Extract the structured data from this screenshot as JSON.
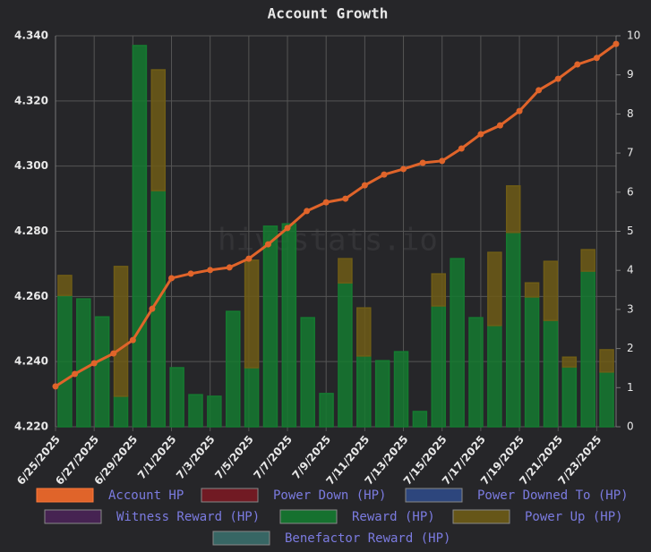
{
  "chart_data": {
    "type": "bar",
    "title": "Account Growth",
    "watermark": "hivestats.io",
    "categories": [
      "6/25/2025",
      null,
      "6/27/2025",
      null,
      "6/29/2025",
      null,
      "7/1/2025",
      null,
      "7/3/2025",
      null,
      "7/5/2025",
      null,
      "7/7/2025",
      null,
      "7/9/2025",
      null,
      "7/11/2025",
      null,
      "7/13/2025",
      null,
      "7/15/2025",
      null,
      "7/17/2025",
      null,
      "7/19/2025",
      null,
      "7/21/2025",
      null,
      "7/23/2025",
      null
    ],
    "series": [
      {
        "name": "Account HP",
        "type": "line",
        "axis": "y",
        "color": "#e0642a",
        "values": [
          4.2324,
          4.2362,
          4.2395,
          4.2425,
          4.2466,
          4.2562,
          4.2656,
          4.267,
          4.2681,
          4.2689,
          4.2716,
          4.276,
          4.281,
          4.2862,
          4.2889,
          4.29,
          4.2941,
          4.2974,
          4.2991,
          4.301,
          4.3016,
          4.3054,
          4.3098,
          4.3125,
          4.3169,
          4.3233,
          4.3268,
          4.3312,
          4.3332,
          4.3375
        ]
      },
      {
        "name": "Power Down (HP)",
        "axis": "y2",
        "color": "#7a1a22",
        "values": [
          null,
          null,
          null,
          null,
          null,
          null,
          null,
          null,
          null,
          null,
          null,
          null,
          null,
          null,
          null,
          null,
          null,
          null,
          null,
          null,
          null,
          null,
          null,
          null,
          null,
          null,
          null,
          null,
          null,
          null
        ]
      },
      {
        "name": "Power Downed To (HP)",
        "axis": "y2",
        "color": "#2f4a86",
        "values": [
          null,
          null,
          null,
          null,
          null,
          null,
          null,
          null,
          null,
          null,
          null,
          null,
          null,
          null,
          null,
          null,
          null,
          null,
          null,
          null,
          null,
          null,
          null,
          null,
          null,
          null,
          null,
          null,
          null,
          null
        ]
      },
      {
        "name": "Witness Reward (HP)",
        "axis": "y2",
        "color": "#4a2456",
        "values": [
          null,
          null,
          null,
          null,
          null,
          null,
          null,
          null,
          null,
          null,
          null,
          null,
          null,
          null,
          null,
          null,
          null,
          null,
          null,
          null,
          null,
          null,
          null,
          null,
          null,
          null,
          null,
          null,
          null,
          null
        ]
      },
      {
        "name": "Reward (HP)",
        "axis": "y2",
        "color": "#157a30",
        "values": [
          3.36,
          3.27,
          2.81,
          0.78,
          9.75,
          6.04,
          1.51,
          0.82,
          0.78,
          2.95,
          1.51,
          5.13,
          5.19,
          2.79,
          0.85,
          3.68,
          1.81,
          1.69,
          1.92,
          0.39,
          3.09,
          4.3,
          2.79,
          2.59,
          4.97,
          3.32,
          2.72,
          1.53,
          3.98,
          1.4
        ]
      },
      {
        "name": "Power Up (HP)",
        "axis": "y2",
        "color": "#6e5c16",
        "values": [
          0.51,
          null,
          null,
          3.32,
          null,
          3.09,
          null,
          null,
          null,
          null,
          2.75,
          null,
          null,
          null,
          null,
          0.62,
          1.23,
          null,
          null,
          null,
          0.82,
          null,
          null,
          1.87,
          1.19,
          0.36,
          1.51,
          0.25,
          0.55,
          0.57
        ]
      },
      {
        "name": "Benefactor Reward (HP)",
        "axis": "y2",
        "color": "#3a6e6a",
        "values": [
          null,
          null,
          null,
          null,
          null,
          null,
          null,
          null,
          null,
          null,
          null,
          null,
          null,
          null,
          null,
          null,
          null,
          null,
          null,
          null,
          null,
          null,
          null,
          null,
          null,
          null,
          null,
          null,
          null,
          null
        ]
      }
    ],
    "ylim": [
      4.22,
      4.34
    ],
    "yticks": [
      {
        "value": 4.22,
        "label": "4.220"
      },
      {
        "value": 4.24,
        "label": "4.240"
      },
      {
        "value": 4.26,
        "label": "4.260"
      },
      {
        "value": 4.28,
        "label": "4.280"
      },
      {
        "value": 4.3,
        "label": "4.300"
      },
      {
        "value": 4.32,
        "label": "4.320"
      },
      {
        "value": 4.34,
        "label": "4.340"
      }
    ],
    "y2lim": [
      0,
      10
    ],
    "y2ticks": [
      0,
      1,
      2,
      3,
      4,
      5,
      6,
      7,
      8,
      9,
      10
    ],
    "grid": true,
    "stacked": true
  }
}
